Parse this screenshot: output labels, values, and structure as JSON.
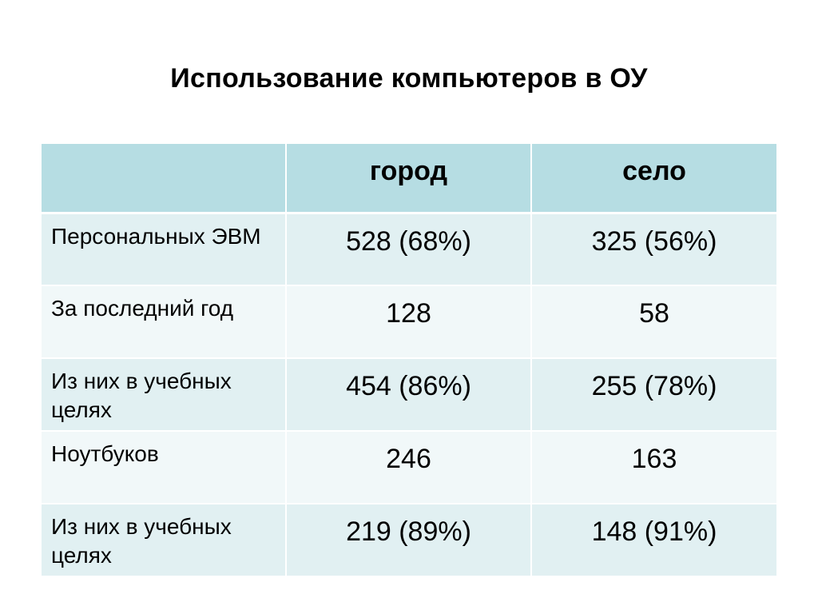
{
  "title": "Использование компьютеров в ОУ",
  "table": {
    "columns": [
      "",
      "город",
      "село"
    ],
    "rows": [
      {
        "label": "Персональных ЭВМ",
        "city": "528 (68%)",
        "village": "325 (56%)"
      },
      {
        "label": "За последний год",
        "city": "128",
        "village": "58"
      },
      {
        "label": "Из них в учебных целях",
        "city": "454 (86%)",
        "village": "255 (78%)"
      },
      {
        "label": "Ноутбуков",
        "city": "246",
        "village": "163"
      },
      {
        "label": "Из них в учебных целях",
        "city": "219 (89%)",
        "village": "148 (91%)"
      }
    ]
  },
  "colors": {
    "header_fill": "#b6dde3",
    "row_fill_dark": "#e1f0f2",
    "row_fill_light": "#f1f8f9"
  }
}
